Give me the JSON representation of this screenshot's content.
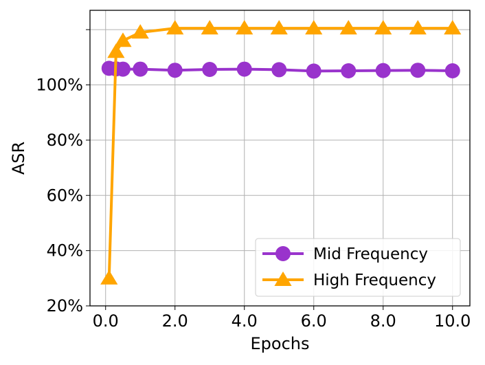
{
  "chart_data": {
    "type": "line",
    "title": "",
    "xlabel": "Epochs",
    "ylabel": "ASR",
    "x": [
      0.1,
      0.3,
      0.5,
      1,
      2,
      3,
      4,
      5,
      6,
      7,
      8,
      9,
      10
    ],
    "x_ticks": [
      0,
      2,
      4,
      6,
      8,
      10
    ],
    "x_tick_labels": [
      "0.0",
      "2.0",
      "4.0",
      "6.0",
      "8.0",
      "10.0"
    ],
    "y_ticks": [
      20,
      40,
      60,
      80,
      100,
      120
    ],
    "y_tick_labels": [
      "20%",
      "40%",
      "60%",
      "80%",
      "100%",
      ""
    ],
    "xlim": [
      -0.45,
      10.5
    ],
    "ylim": [
      20,
      127
    ],
    "grid": true,
    "legend_position": "lower right",
    "series": [
      {
        "name": "Mid Frequency",
        "color": "#9933cc",
        "marker": "circle",
        "values": [
          106.0,
          105.8,
          105.7,
          105.7,
          105.3,
          105.6,
          105.7,
          105.5,
          105.0,
          105.1,
          105.2,
          105.3,
          105.1
        ]
      },
      {
        "name": "High Frequency",
        "color": "#ffa500",
        "marker": "triangle",
        "values": [
          30.0,
          112.0,
          116.0,
          119.0,
          120.5,
          120.5,
          120.5,
          120.5,
          120.5,
          120.5,
          120.5,
          120.5,
          120.5
        ]
      }
    ]
  }
}
